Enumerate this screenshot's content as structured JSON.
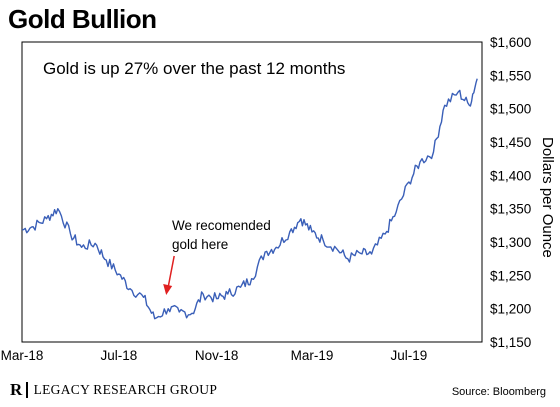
{
  "page": {
    "title": "Gold Bullion",
    "brand": "LEGACY RESEARCH GROUP",
    "source": "Source: Bloomberg"
  },
  "chart_data": {
    "type": "line",
    "title": "Gold Bullion",
    "subtitle": "Gold is up 27% over the past 12 months",
    "ylabel": "Dollars per Ounce",
    "y_axis_position": "right",
    "ylim": [
      1150,
      1600
    ],
    "yticks": [
      1150,
      1200,
      1250,
      1300,
      1350,
      1400,
      1450,
      1500,
      1550,
      1600
    ],
    "ytick_labels": [
      "$1,150",
      "$1,200",
      "$1,250",
      "$1,300",
      "$1,350",
      "$1,400",
      "$1,450",
      "$1,500",
      "$1,550",
      "$1,600"
    ],
    "xlim": [
      "2018-03-01",
      "2019-10-01"
    ],
    "xticks": [
      "2018-03-01",
      "2018-07-01",
      "2018-11-01",
      "2019-03-01",
      "2019-07-01"
    ],
    "xtick_labels": [
      "Mar-18",
      "Jul-18",
      "Nov-18",
      "Mar-19",
      "Jul-19"
    ],
    "grid": false,
    "line_color": "#3a5fb8",
    "series": [
      {
        "x": [
          "2018-03-01",
          "2018-03-15",
          "2018-04-01",
          "2018-04-15",
          "2018-05-01",
          "2018-05-15",
          "2018-06-01",
          "2018-06-15",
          "2018-07-01",
          "2018-07-15",
          "2018-08-01",
          "2018-08-15",
          "2018-09-01",
          "2018-09-15",
          "2018-10-01",
          "2018-10-15",
          "2018-11-01",
          "2018-11-15",
          "2018-12-01",
          "2018-12-15",
          "2019-01-01",
          "2019-01-15",
          "2019-02-01",
          "2019-02-15",
          "2019-03-01",
          "2019-03-15",
          "2019-04-01",
          "2019-04-15",
          "2019-05-01",
          "2019-05-15",
          "2019-06-01",
          "2019-06-15",
          "2019-07-01",
          "2019-07-15",
          "2019-08-01",
          "2019-08-15",
          "2019-09-01",
          "2019-09-15",
          "2019-09-25"
        ],
        "values": [
          1318,
          1323,
          1335,
          1350,
          1312,
          1292,
          1298,
          1273,
          1252,
          1230,
          1217,
          1185,
          1200,
          1195,
          1193,
          1222,
          1215,
          1222,
          1232,
          1245,
          1285,
          1292,
          1315,
          1335,
          1315,
          1303,
          1290,
          1275,
          1283,
          1282,
          1312,
          1345,
          1390,
          1420,
          1435,
          1505,
          1525,
          1505,
          1545
        ]
      }
    ],
    "annotations": [
      {
        "text_lines": [
          "We recomended",
          "gold here"
        ],
        "x": "2018-09-01",
        "y": 1200,
        "arrow_color": "#e02020"
      }
    ]
  }
}
